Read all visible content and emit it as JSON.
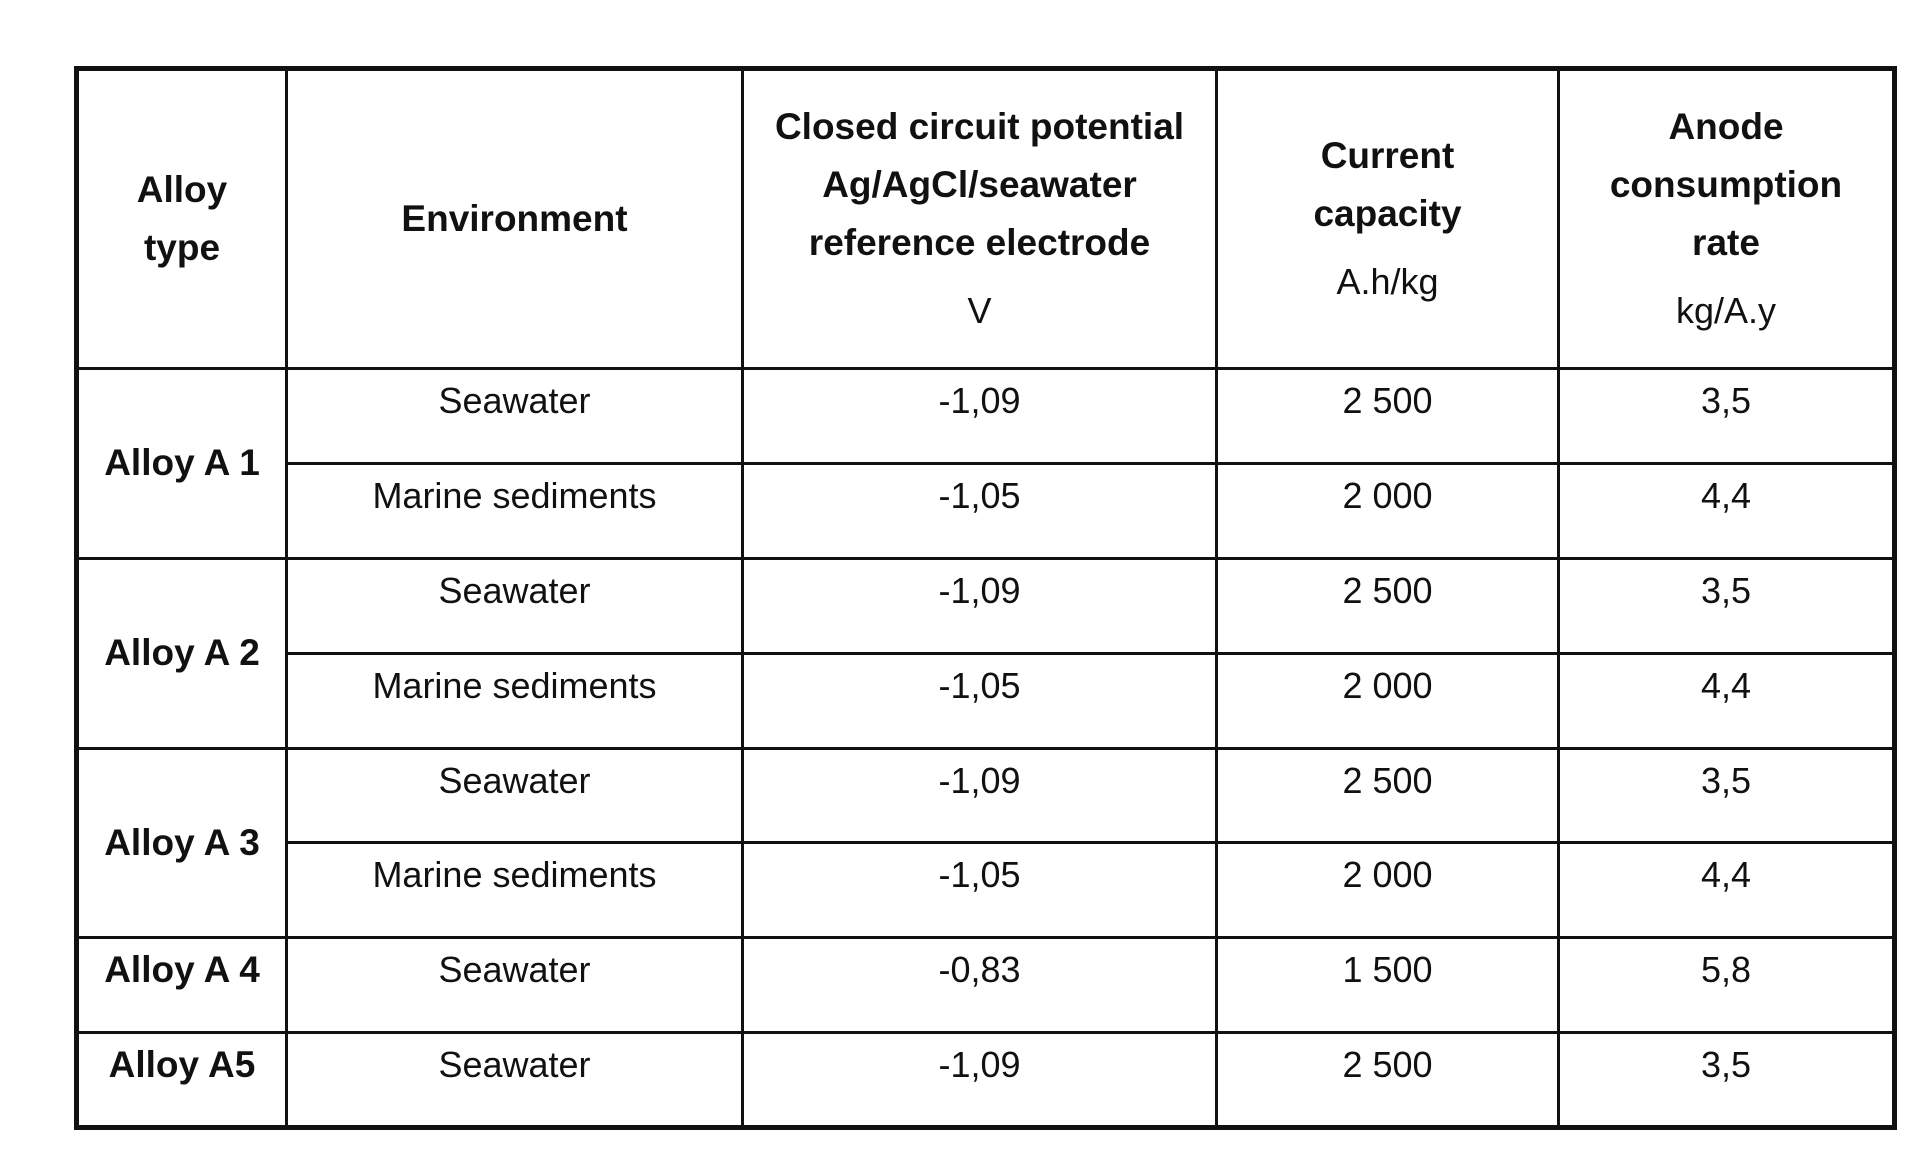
{
  "headers": {
    "alloy": [
      "Alloy",
      "type"
    ],
    "environment": "Environment",
    "potential": [
      "Closed circuit potential",
      "Ag/AgCl/seawater",
      "reference electrode"
    ],
    "potential_unit": "V",
    "capacity": [
      "Current",
      "capacity"
    ],
    "capacity_unit": "A.h/kg",
    "consumption": [
      "Anode",
      "consumption",
      "rate"
    ],
    "consumption_unit": "kg/A.y"
  },
  "rows": [
    {
      "alloy": "Alloy A 1",
      "environment": "Seawater",
      "potential": "-1,09",
      "capacity": "2 500",
      "consumption": "3,5"
    },
    {
      "alloy": "",
      "environment": "Marine sediments",
      "potential": "-1,05",
      "capacity": "2 000",
      "consumption": "4,4"
    },
    {
      "alloy": "Alloy A 2",
      "environment": "Seawater",
      "potential": "-1,09",
      "capacity": "2 500",
      "consumption": "3,5"
    },
    {
      "alloy": "",
      "environment": "Marine sediments",
      "potential": "-1,05",
      "capacity": "2 000",
      "consumption": "4,4"
    },
    {
      "alloy": "Alloy A 3",
      "environment": "Seawater",
      "potential": "-1,09",
      "capacity": "2 500",
      "consumption": "3,5"
    },
    {
      "alloy": "",
      "environment": "Marine sediments",
      "potential": "-1,05",
      "capacity": "2 000",
      "consumption": "4,4"
    },
    {
      "alloy": "Alloy A 4",
      "environment": "Seawater",
      "potential": "-0,83",
      "capacity": "1 500",
      "consumption": "5,8"
    },
    {
      "alloy": "Alloy A5",
      "environment": "Seawater",
      "potential": "-1,09",
      "capacity": "2 500",
      "consumption": "3,5"
    }
  ]
}
